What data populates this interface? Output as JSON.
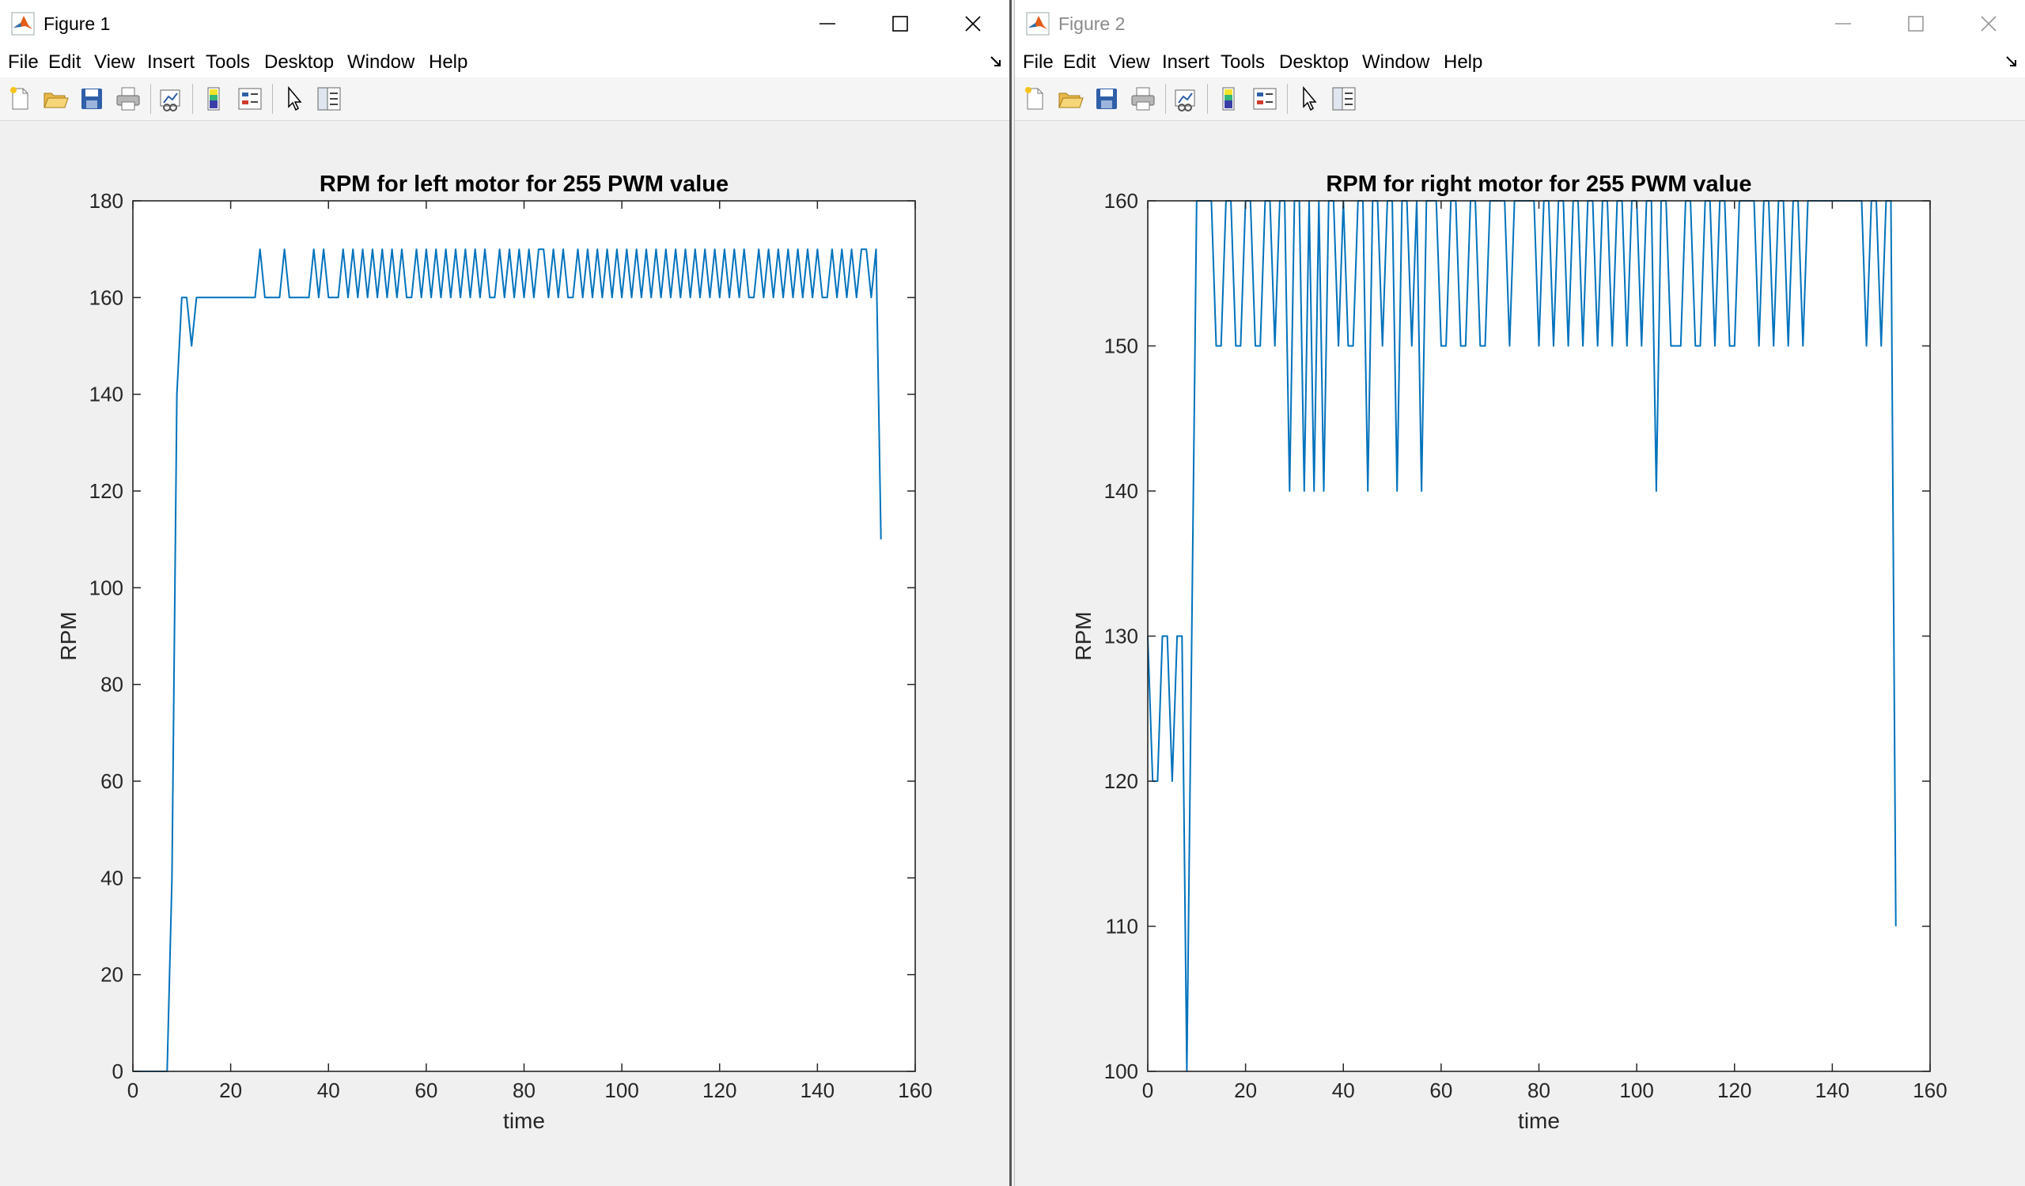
{
  "windows": [
    {
      "title": "Figure 1",
      "active": true,
      "menu": [
        "File",
        "Edit",
        "View",
        "Insert",
        "Tools",
        "Desktop",
        "Window",
        "Help"
      ],
      "toolbar_icons": [
        "new-figure-icon",
        "open-file-icon",
        "save-icon",
        "print-icon",
        "link-plot-icon",
        "colorbar-icon",
        "legend-icon",
        "pointer-icon",
        "property-inspector-icon"
      ]
    },
    {
      "title": "Figure 2",
      "active": false,
      "menu": [
        "File",
        "Edit",
        "View",
        "Insert",
        "Tools",
        "Desktop",
        "Window",
        "Help"
      ],
      "toolbar_icons": [
        "new-figure-icon",
        "open-file-icon",
        "save-icon",
        "print-icon",
        "link-plot-icon",
        "colorbar-icon",
        "legend-icon",
        "pointer-icon",
        "property-inspector-icon"
      ]
    }
  ],
  "colors": {
    "line": "#0072bd",
    "axes": "#262626",
    "titlebar_active": "#000000",
    "titlebar_inactive": "#8a8a8a"
  },
  "chart_data": [
    {
      "type": "line",
      "title": "RPM for left motor for 255 PWM value",
      "xlabel": "time",
      "ylabel": "RPM",
      "xlim": [
        0,
        160
      ],
      "ylim": [
        0,
        180
      ],
      "xticks": [
        0,
        20,
        40,
        60,
        80,
        100,
        120,
        140,
        160
      ],
      "yticks": [
        0,
        20,
        40,
        60,
        80,
        100,
        120,
        140,
        160,
        180
      ],
      "grid": false,
      "series": [
        {
          "x": [
            0,
            1,
            2,
            3,
            4,
            5,
            6,
            7,
            8,
            9,
            10,
            11,
            12,
            13,
            14,
            15,
            16,
            17,
            18,
            19,
            20,
            21,
            22,
            23,
            24,
            25,
            26,
            27,
            28,
            29,
            30,
            31,
            32,
            33,
            34,
            35,
            36,
            37,
            38,
            39,
            40,
            41,
            42,
            43,
            44,
            45,
            46,
            47,
            48,
            49,
            50,
            51,
            52,
            53,
            54,
            55,
            56,
            57,
            58,
            59,
            60,
            61,
            62,
            63,
            64,
            65,
            66,
            67,
            68,
            69,
            70,
            71,
            72,
            73,
            74,
            75,
            76,
            77,
            78,
            79,
            80,
            81,
            82,
            83,
            84,
            85,
            86,
            87,
            88,
            89,
            90,
            91,
            92,
            93,
            94,
            95,
            96,
            97,
            98,
            99,
            100,
            101,
            102,
            103,
            104,
            105,
            106,
            107,
            108,
            109,
            110,
            111,
            112,
            113,
            114,
            115,
            116,
            117,
            118,
            119,
            120,
            121,
            122,
            123,
            124,
            125,
            126,
            127,
            128,
            129,
            130,
            131,
            132,
            133,
            134,
            135,
            136,
            137,
            138,
            139,
            140,
            141,
            142,
            143,
            144,
            145,
            146,
            147,
            148,
            149,
            150,
            151,
            152,
            153
          ],
          "y": [
            0,
            0,
            0,
            0,
            0,
            0,
            0,
            0,
            40,
            140,
            160,
            160,
            150,
            160,
            160,
            160,
            160,
            160,
            160,
            160,
            160,
            160,
            160,
            160,
            160,
            160,
            170,
            160,
            160,
            160,
            160,
            170,
            160,
            160,
            160,
            160,
            160,
            170,
            160,
            170,
            160,
            160,
            160,
            170,
            160,
            170,
            160,
            170,
            160,
            170,
            160,
            170,
            160,
            170,
            160,
            170,
            160,
            160,
            170,
            160,
            170,
            160,
            170,
            160,
            170,
            160,
            170,
            160,
            170,
            160,
            170,
            160,
            170,
            160,
            160,
            170,
            160,
            170,
            160,
            170,
            160,
            170,
            160,
            170,
            170,
            160,
            170,
            160,
            170,
            160,
            160,
            170,
            160,
            170,
            160,
            170,
            160,
            170,
            160,
            170,
            160,
            170,
            160,
            170,
            160,
            170,
            160,
            170,
            160,
            170,
            160,
            170,
            160,
            170,
            160,
            170,
            160,
            170,
            160,
            170,
            160,
            170,
            160,
            170,
            160,
            170,
            160,
            160,
            170,
            160,
            170,
            160,
            170,
            160,
            170,
            160,
            170,
            160,
            170,
            160,
            170,
            160,
            160,
            170,
            160,
            170,
            160,
            170,
            160,
            170,
            170,
            160,
            170,
            110
          ]
        }
      ]
    },
    {
      "type": "line",
      "title": "RPM for right motor for 255 PWM value",
      "xlabel": "time",
      "ylabel": "RPM",
      "xlim": [
        0,
        160
      ],
      "ylim": [
        100,
        160
      ],
      "xticks": [
        0,
        20,
        40,
        60,
        80,
        100,
        120,
        140,
        160
      ],
      "yticks": [
        100,
        110,
        120,
        130,
        140,
        150,
        160
      ],
      "grid": false,
      "series": [
        {
          "x": [
            0,
            1,
            2,
            3,
            4,
            5,
            6,
            7,
            8,
            9,
            10,
            11,
            12,
            13,
            14,
            15,
            16,
            17,
            18,
            19,
            20,
            21,
            22,
            23,
            24,
            25,
            26,
            27,
            28,
            29,
            30,
            31,
            32,
            33,
            34,
            35,
            36,
            37,
            38,
            39,
            40,
            41,
            42,
            43,
            44,
            45,
            46,
            47,
            48,
            49,
            50,
            51,
            52,
            53,
            54,
            55,
            56,
            57,
            58,
            59,
            60,
            61,
            62,
            63,
            64,
            65,
            66,
            67,
            68,
            69,
            70,
            71,
            72,
            73,
            74,
            75,
            76,
            77,
            78,
            79,
            80,
            81,
            82,
            83,
            84,
            85,
            86,
            87,
            88,
            89,
            90,
            91,
            92,
            93,
            94,
            95,
            96,
            97,
            98,
            99,
            100,
            101,
            102,
            103,
            104,
            105,
            106,
            107,
            108,
            109,
            110,
            111,
            112,
            113,
            114,
            115,
            116,
            117,
            118,
            119,
            120,
            121,
            122,
            123,
            124,
            125,
            126,
            127,
            128,
            129,
            130,
            131,
            132,
            133,
            134,
            135,
            136,
            137,
            138,
            139,
            140,
            141,
            142,
            143,
            144,
            145,
            146,
            147,
            148,
            149,
            150,
            151,
            152,
            153
          ],
          "y": [
            130,
            120,
            120,
            130,
            130,
            120,
            130,
            130,
            100,
            130,
            160,
            160,
            160,
            160,
            150,
            150,
            160,
            160,
            150,
            150,
            160,
            160,
            150,
            150,
            160,
            160,
            150,
            160,
            160,
            140,
            160,
            160,
            140,
            160,
            140,
            160,
            140,
            160,
            160,
            150,
            160,
            150,
            150,
            160,
            160,
            140,
            160,
            160,
            150,
            160,
            160,
            140,
            160,
            160,
            150,
            160,
            140,
            160,
            160,
            160,
            150,
            150,
            160,
            160,
            150,
            150,
            160,
            160,
            150,
            150,
            160,
            160,
            160,
            160,
            150,
            160,
            160,
            160,
            160,
            160,
            150,
            160,
            160,
            150,
            160,
            160,
            150,
            160,
            160,
            150,
            160,
            160,
            150,
            160,
            160,
            150,
            160,
            160,
            150,
            160,
            160,
            150,
            160,
            160,
            140,
            160,
            160,
            150,
            150,
            150,
            160,
            160,
            150,
            150,
            160,
            160,
            150,
            160,
            160,
            150,
            150,
            160,
            160,
            160,
            160,
            150,
            160,
            160,
            150,
            160,
            160,
            150,
            160,
            160,
            150,
            160,
            160,
            160,
            160,
            160,
            160,
            160,
            160,
            160,
            160,
            160,
            160,
            150,
            160,
            160,
            150,
            160,
            160,
            110
          ]
        }
      ]
    }
  ]
}
